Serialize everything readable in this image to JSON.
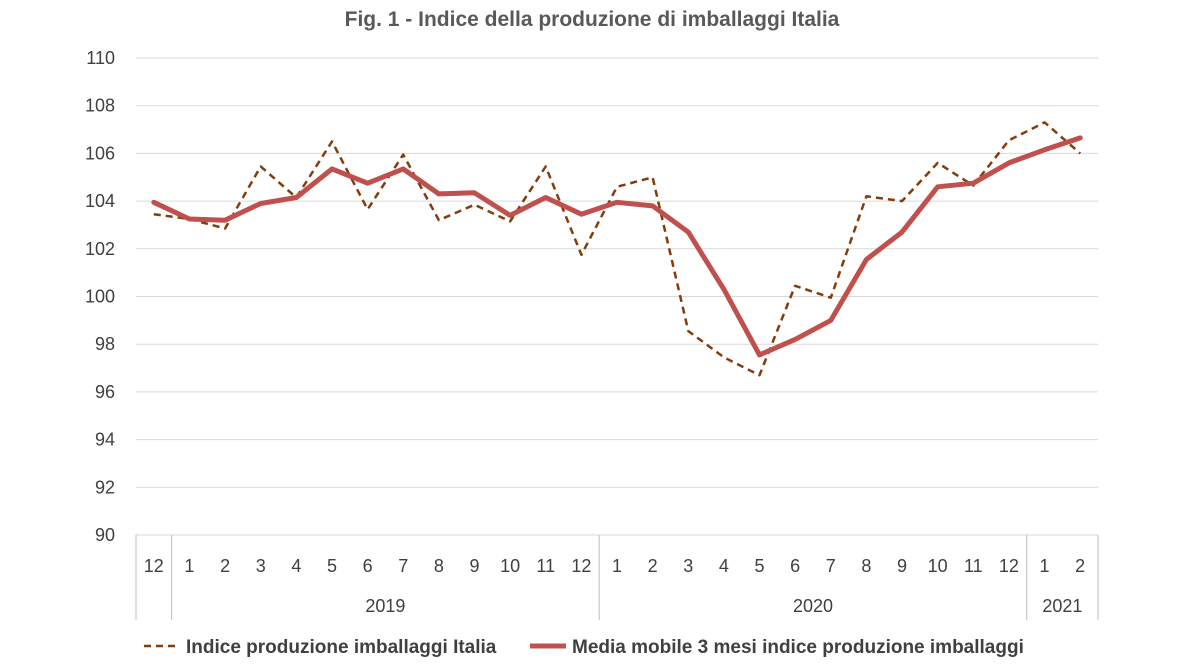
{
  "chart_data": {
    "type": "line",
    "title": "Fig. 1 - Indice della produzione di imballaggi Italia",
    "ylim": [
      90,
      110
    ],
    "y_ticks": [
      "90",
      "92",
      "94",
      "96",
      "98",
      "100",
      "102",
      "104",
      "106",
      "108",
      "110"
    ],
    "grid": "horizontal",
    "legend_position": "bottom",
    "x": [
      "12",
      "1",
      "2",
      "3",
      "4",
      "5",
      "6",
      "7",
      "8",
      "9",
      "10",
      "11",
      "12",
      "1",
      "2",
      "3",
      "4",
      "5",
      "6",
      "7",
      "8",
      "9",
      "10",
      "11",
      "12",
      "1",
      "2"
    ],
    "x_groups": [
      {
        "label": "",
        "count": 1
      },
      {
        "label": "2019",
        "count": 12
      },
      {
        "label": "2020",
        "count": 12
      },
      {
        "label": "2021",
        "count": 2
      }
    ],
    "series": [
      {
        "name": "Indice produzione imballaggi Italia",
        "style": "dashed",
        "color": "#843c0c",
        "values": [
          103.45,
          103.25,
          102.85,
          105.45,
          104.15,
          106.5,
          103.65,
          105.95,
          103.2,
          103.85,
          103.15,
          105.45,
          101.75,
          104.6,
          105.0,
          98.55,
          97.45,
          96.7,
          100.45,
          99.95,
          104.2,
          104.0,
          105.6,
          104.65,
          106.55,
          107.3,
          106.0
        ]
      },
      {
        "name": "Media mobile 3 mesi indice produzione imballaggi",
        "style": "solid",
        "color": "#c0504d",
        "values": [
          103.95,
          103.25,
          103.2,
          103.9,
          104.15,
          105.35,
          104.75,
          105.35,
          104.3,
          104.35,
          103.4,
          104.15,
          103.45,
          103.95,
          103.8,
          102.7,
          100.3,
          97.55,
          98.2,
          99.0,
          101.55,
          102.7,
          104.6,
          104.75,
          105.6,
          106.15,
          106.65
        ]
      }
    ]
  }
}
